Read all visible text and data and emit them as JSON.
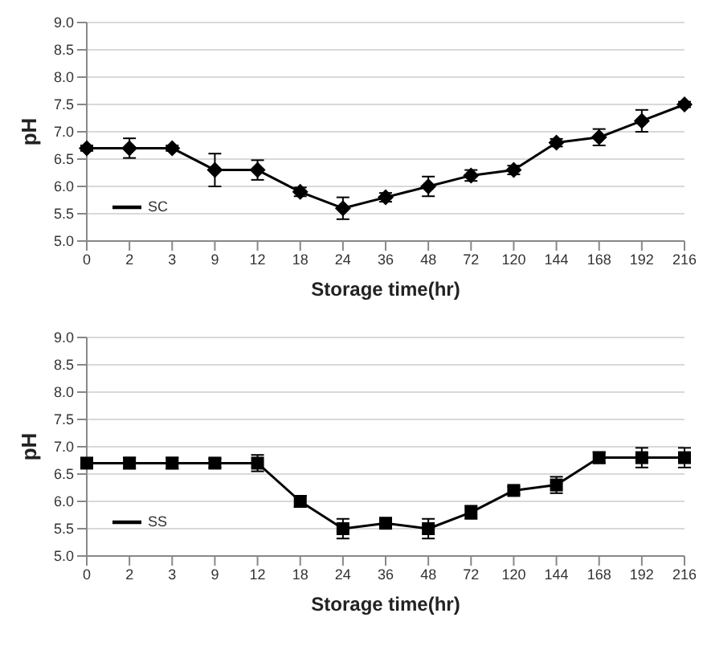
{
  "chart_data": [
    {
      "type": "line",
      "xlabel": "Storage time(hr)",
      "ylabel": "pH",
      "categories": [
        "0",
        "2",
        "3",
        "9",
        "12",
        "18",
        "24",
        "36",
        "48",
        "72",
        "120",
        "144",
        "168",
        "192",
        "216"
      ],
      "series": [
        {
          "name": "SC",
          "color": "#000000",
          "values": [
            6.7,
            6.7,
            6.7,
            6.3,
            6.3,
            5.9,
            5.6,
            5.8,
            6.0,
            6.2,
            6.3,
            6.8,
            6.9,
            7.2,
            7.5
          ],
          "errors": [
            0.05,
            0.18,
            0.05,
            0.3,
            0.18,
            0.08,
            0.2,
            0.08,
            0.18,
            0.1,
            0.08,
            0.07,
            0.15,
            0.2,
            0.05
          ]
        }
      ],
      "ylim": [
        5,
        9
      ],
      "yticks": [
        {
          "value": 5,
          "label": "5.0"
        },
        {
          "value": 5.5,
          "label": "5.5"
        },
        {
          "value": 6,
          "label": "6.0"
        },
        {
          "value": 6.5,
          "label": "6.5"
        },
        {
          "value": 7,
          "label": "7.0"
        },
        {
          "value": 7.5,
          "label": "7.5"
        },
        {
          "value": 8,
          "label": "8.0"
        },
        {
          "value": 8.5,
          "label": "8.5"
        },
        {
          "value": 9,
          "label": "9.0"
        }
      ],
      "grid": "y",
      "legend": "left",
      "marker": "diamond",
      "line_style": "solid"
    },
    {
      "type": "line",
      "xlabel": "Storage time(hr)",
      "ylabel": "pH",
      "categories": [
        "0",
        "2",
        "3",
        "9",
        "12",
        "18",
        "24",
        "36",
        "48",
        "72",
        "120",
        "144",
        "168",
        "192",
        "216"
      ],
      "series": [
        {
          "name": "SS",
          "color": "#000000",
          "values": [
            6.7,
            6.7,
            6.7,
            6.7,
            6.7,
            6.0,
            5.5,
            5.6,
            5.5,
            5.8,
            6.2,
            6.3,
            6.8,
            6.8,
            6.8
          ],
          "errors": [
            0.08,
            0.1,
            0.1,
            0.08,
            0.15,
            0.1,
            0.18,
            0.08,
            0.18,
            0.12,
            0.07,
            0.15,
            0.1,
            0.18,
            0.18
          ]
        }
      ],
      "ylim": [
        5,
        9
      ],
      "yticks": [
        {
          "value": 5,
          "label": "5.0"
        },
        {
          "value": 5.5,
          "label": "5.5"
        },
        {
          "value": 6,
          "label": "6.0"
        },
        {
          "value": 6.5,
          "label": "6.5"
        },
        {
          "value": 7,
          "label": "7.0"
        },
        {
          "value": 7.5,
          "label": "7.5"
        },
        {
          "value": 8,
          "label": "8.0"
        },
        {
          "value": 8.5,
          "label": "8.5"
        },
        {
          "value": 9,
          "label": "9.0"
        }
      ],
      "grid": "y",
      "legend": "left",
      "marker": "square",
      "line_style": "solid"
    }
  ]
}
